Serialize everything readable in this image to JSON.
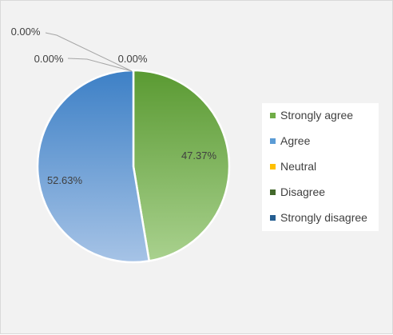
{
  "chart_data": {
    "type": "pie",
    "categories": [
      "Strongly agree",
      "Agree",
      "Neutral",
      "Disagree",
      "Strongly disagree"
    ],
    "values": [
      47.37,
      52.63,
      0.0,
      0.0,
      0.0
    ],
    "data_labels": [
      "47.37%",
      "52.63%",
      "0.00%",
      "0.00%",
      "0.00%"
    ],
    "colors": [
      "#70ad47",
      "#5b9bd5",
      "#ffc000",
      "#43682b",
      "#255e91"
    ],
    "legend_position": "right"
  }
}
